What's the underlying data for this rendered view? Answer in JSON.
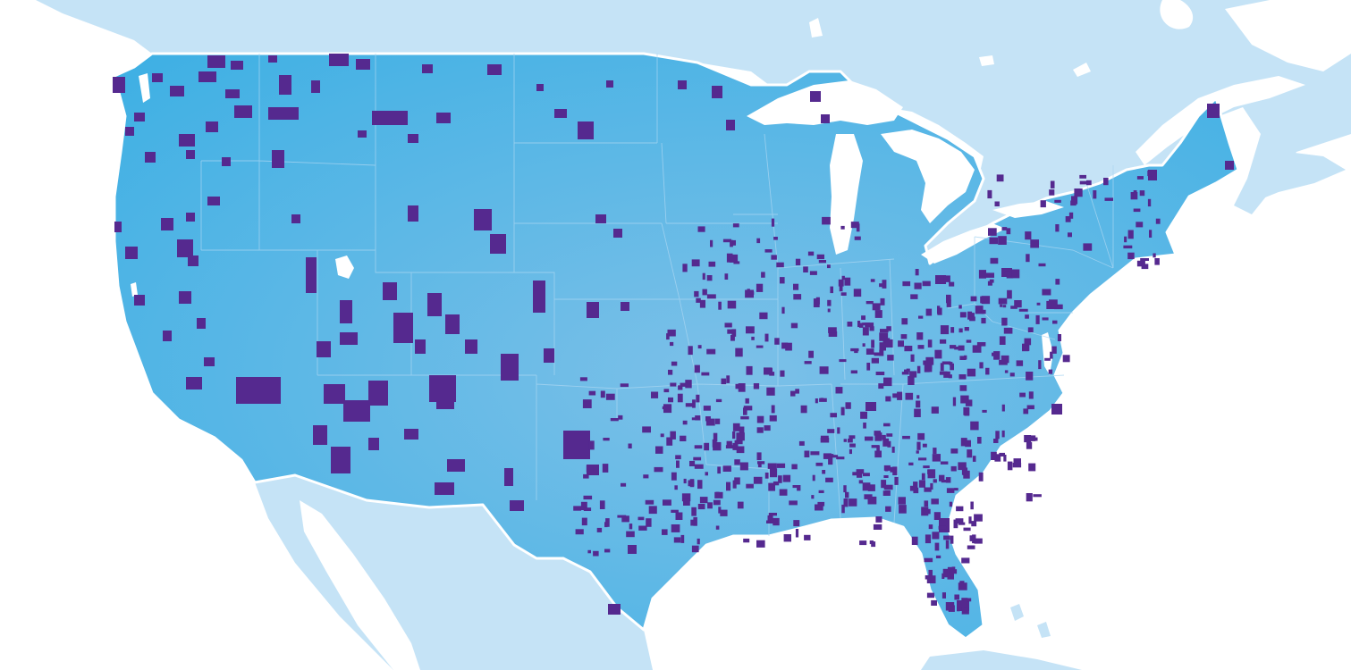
{
  "map": {
    "type": "choropleth",
    "region": "contiguous-united-states",
    "projection": "albers-usa",
    "colors": {
      "ocean": "#ffffff",
      "neighbor_land": "#c5e3f6",
      "us_land_light": "#7cc0e8",
      "us_land_dark": "#3fb0e4",
      "highlight_county": "#55298f",
      "state_border": "#a9d6f1",
      "water": "#ffffff"
    },
    "legend": null,
    "labels": []
  }
}
